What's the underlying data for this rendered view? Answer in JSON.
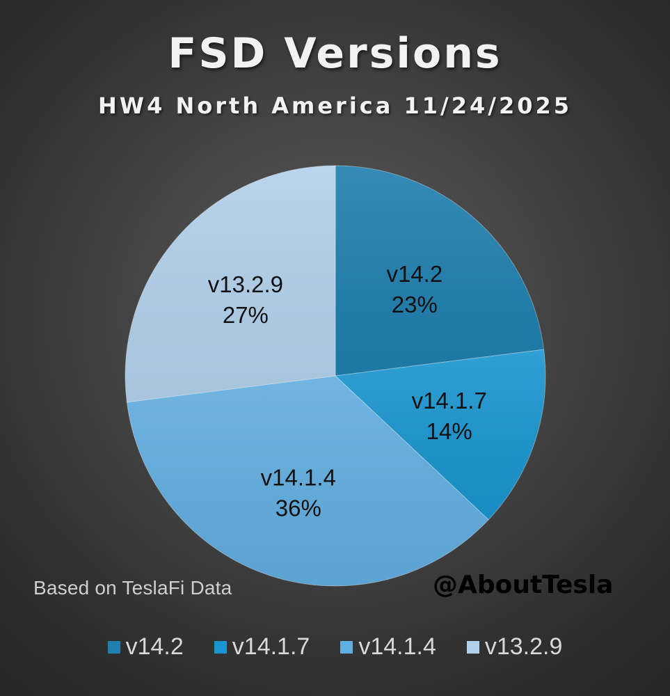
{
  "chart_data": {
    "type": "pie",
    "title": "FSD Versions",
    "subtitle": "HW4 North America 11/24/2025",
    "slices": [
      {
        "label": "v14.2",
        "value": 23,
        "value_label": "23%",
        "color": "#1f7fae"
      },
      {
        "label": "v14.1.7",
        "value": 14,
        "value_label": "14%",
        "color": "#1a95cf"
      },
      {
        "label": "v14.1.4",
        "value": 36,
        "value_label": "36%",
        "color": "#62aee0"
      },
      {
        "label": "v13.2.9",
        "value": 27,
        "value_label": "27%",
        "color": "#b2d1ec"
      }
    ],
    "start_angle_deg": 0,
    "direction": "clockwise",
    "legend_position": "bottom",
    "data_labels": "category and percentage inside slices"
  },
  "footer": {
    "source_note": "Based on TeslaFi Data",
    "watermark": "@AboutTesla"
  }
}
